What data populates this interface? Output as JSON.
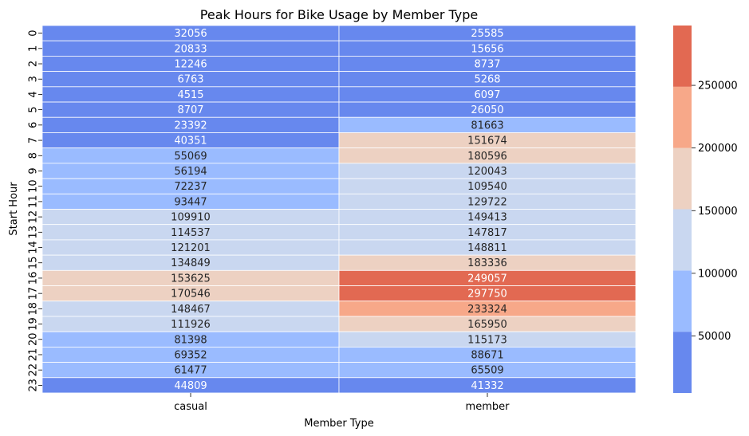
{
  "chart_data": {
    "type": "heatmap",
    "title": "Peak Hours for Bike Usage by Member Type",
    "xlabel": "Member Type",
    "ylabel": "Start Hour",
    "columns": [
      "casual",
      "member"
    ],
    "rows": [
      "0",
      "1",
      "2",
      "3",
      "4",
      "5",
      "6",
      "7",
      "8",
      "9",
      "10",
      "11",
      "12",
      "13",
      "14",
      "15",
      "16",
      "17",
      "18",
      "19",
      "20",
      "21",
      "22",
      "23"
    ],
    "values": [
      [
        32056,
        25585
      ],
      [
        20833,
        15656
      ],
      [
        12246,
        8737
      ],
      [
        6763,
        5268
      ],
      [
        4515,
        6097
      ],
      [
        8707,
        26050
      ],
      [
        23392,
        81663
      ],
      [
        40351,
        151674
      ],
      [
        55069,
        180596
      ],
      [
        56194,
        120043
      ],
      [
        72237,
        109540
      ],
      [
        93447,
        129722
      ],
      [
        109910,
        149413
      ],
      [
        114537,
        147817
      ],
      [
        121201,
        148811
      ],
      [
        134849,
        183336
      ],
      [
        153625,
        249057
      ],
      [
        170546,
        297750
      ],
      [
        148467,
        233324
      ],
      [
        111926,
        165950
      ],
      [
        81398,
        115173
      ],
      [
        69352,
        88671
      ],
      [
        61477,
        65509
      ],
      [
        44809,
        41332
      ]
    ],
    "colorbar": {
      "min": 4515,
      "max": 297750,
      "ticks": [
        50000,
        100000,
        150000,
        200000,
        250000
      ],
      "tick_labels": [
        "50000",
        "100000",
        "150000",
        "200000",
        "250000"
      ],
      "bins": [
        {
          "upper": 53388,
          "color": "#6788ee"
        },
        {
          "upper": 102261,
          "color": "#9abbff"
        },
        {
          "upper": 151134,
          "color": "#c9d7f0"
        },
        {
          "upper": 200007,
          "color": "#edd1c2"
        },
        {
          "upper": 248880,
          "color": "#f7a889"
        },
        {
          "upper": 297750,
          "color": "#e26952"
        }
      ]
    },
    "grid": false,
    "legend": "colorbar-right"
  }
}
